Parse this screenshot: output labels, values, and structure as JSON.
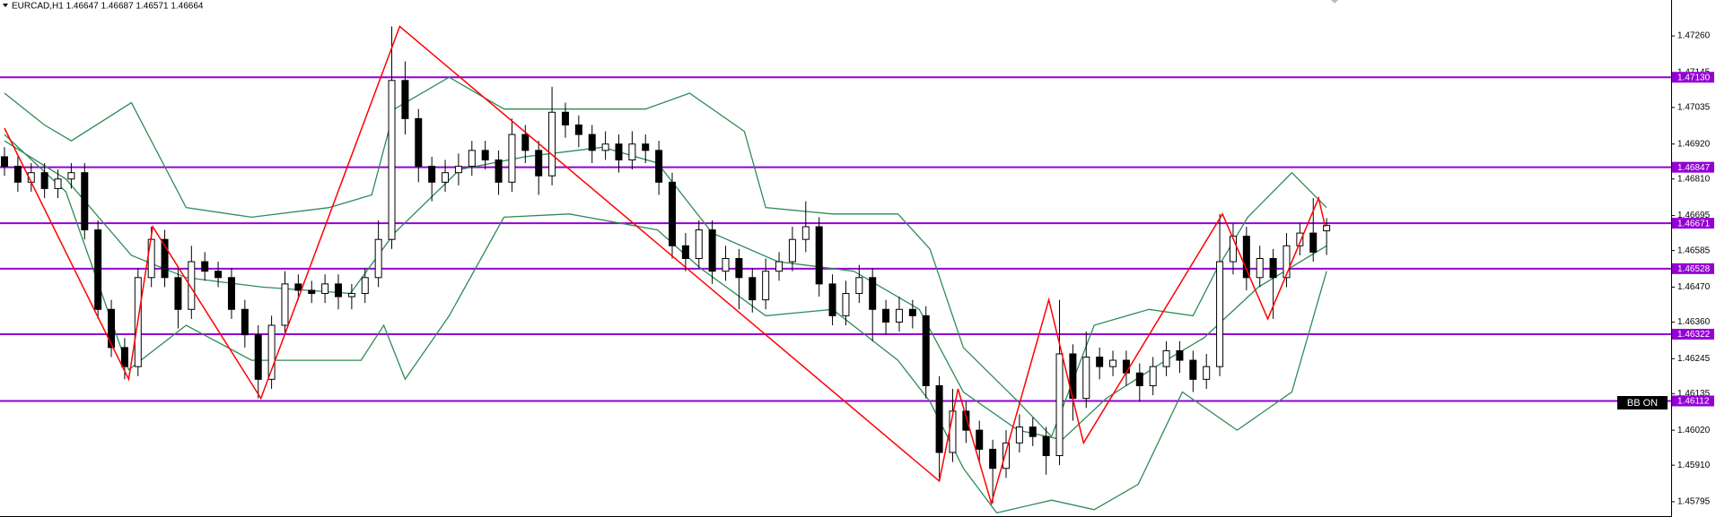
{
  "chart_data": {
    "type": "candlestick",
    "title": "EURCAD,H1  1.46647 1.46687 1.46571 1.46664",
    "ylim": [
      1.45747,
      1.47373
    ],
    "yticks": [
      {
        "value": 1.4726,
        "label": "1.47260"
      },
      1.47145,
      1.47035,
      {
        "value": 1.4692,
        "label": "1.46920"
      },
      {
        "value": 1.4681,
        "label": "1.46810"
      },
      1.46695,
      1.46585,
      {
        "value": 1.4647,
        "label": "1.46470"
      },
      {
        "value": 1.4636,
        "label": "1.46360"
      },
      1.46245,
      1.46135,
      {
        "value": 1.4602,
        "label": "1.46020"
      },
      {
        "value": 1.4591,
        "label": "1.45910"
      },
      1.45795
    ],
    "up_color": "#ffffff",
    "down_color": "#000000",
    "open": [
      1.4688,
      1.4685,
      1.468,
      1.4683,
      1.4678,
      1.4681,
      1.4683,
      1.4665,
      1.464,
      1.4628,
      1.4622,
      1.465,
      1.4662,
      1.465,
      1.464,
      1.4655,
      1.4652,
      1.465,
      1.464,
      1.4632,
      1.4618,
      1.4635,
      1.4648,
      1.4646,
      1.4645,
      1.4648,
      1.4644,
      1.4645,
      1.465,
      1.4662,
      1.4712,
      1.47,
      1.4685,
      1.468,
      1.4683,
      1.4685,
      1.469,
      1.4687,
      1.468,
      1.4695,
      1.469,
      1.4682,
      1.4702,
      1.4698,
      1.4695,
      1.469,
      1.4692,
      1.4687,
      1.4692,
      1.469,
      1.468,
      1.466,
      1.4656,
      1.4665,
      1.4652,
      1.4656,
      1.465,
      1.4643,
      1.4652,
      1.4655,
      1.4662,
      1.4666,
      1.4648,
      1.4638,
      1.4645,
      1.465,
      1.464,
      1.4636,
      1.464,
      1.4638,
      1.4616,
      1.4595,
      1.4608,
      1.4602,
      1.4596,
      1.459,
      1.4598,
      1.4603,
      1.46,
      1.4594,
      1.4626,
      1.4612,
      1.4625,
      1.4622,
      1.4624,
      1.462,
      1.4616,
      1.4622,
      1.4627,
      1.4624,
      1.4618,
      1.4622,
      1.4655,
      1.4663,
      1.465,
      1.4656,
      1.465,
      1.466,
      1.4664,
      1.46647
    ],
    "high": [
      1.4691,
      1.4688,
      1.4686,
      1.4686,
      1.4684,
      1.4686,
      1.4686,
      1.4668,
      1.4643,
      1.4631,
      1.4653,
      1.4666,
      1.4665,
      1.4653,
      1.466,
      1.4658,
      1.4655,
      1.4653,
      1.4643,
      1.4635,
      1.4638,
      1.4652,
      1.4651,
      1.4649,
      1.4651,
      1.4651,
      1.4648,
      1.4653,
      1.4668,
      1.4729,
      1.4718,
      1.4703,
      1.4688,
      1.4687,
      1.4689,
      1.4693,
      1.4693,
      1.469,
      1.47,
      1.4698,
      1.4693,
      1.471,
      1.4705,
      1.4701,
      1.4698,
      1.4696,
      1.4695,
      1.4696,
      1.4695,
      1.4693,
      1.4683,
      1.4664,
      1.4668,
      1.4668,
      1.466,
      1.4659,
      1.4653,
      1.4656,
      1.4658,
      1.4666,
      1.4674,
      1.4669,
      1.4651,
      1.4649,
      1.4654,
      1.4653,
      1.4643,
      1.4644,
      1.4643,
      1.4641,
      1.4619,
      1.4615,
      1.4611,
      1.4605,
      1.4599,
      1.4602,
      1.4607,
      1.4606,
      1.4603,
      1.4643,
      1.4629,
      1.4633,
      1.4628,
      1.4627,
      1.4627,
      1.4623,
      1.4625,
      1.463,
      1.463,
      1.4627,
      1.4626,
      1.467,
      1.4667,
      1.4666,
      1.466,
      1.4659,
      1.4664,
      1.4667,
      1.4675,
      1.46687
    ],
    "low": [
      1.4682,
      1.4677,
      1.4677,
      1.4675,
      1.4675,
      1.4678,
      1.4662,
      1.4637,
      1.4625,
      1.4618,
      1.4619,
      1.4647,
      1.4647,
      1.4634,
      1.4637,
      1.4649,
      1.4647,
      1.4637,
      1.4628,
      1.4612,
      1.4615,
      1.4632,
      1.4643,
      1.4642,
      1.4642,
      1.464,
      1.464,
      1.4642,
      1.4647,
      1.4659,
      1.4695,
      1.468,
      1.4674,
      1.4677,
      1.4679,
      1.4682,
      1.4684,
      1.4676,
      1.4677,
      1.4686,
      1.4676,
      1.4679,
      1.4694,
      1.4691,
      1.4686,
      1.4687,
      1.4683,
      1.4684,
      1.4686,
      1.4676,
      1.4656,
      1.4652,
      1.4653,
      1.4648,
      1.4649,
      1.464,
      1.4639,
      1.464,
      1.4649,
      1.4652,
      1.4658,
      1.4644,
      1.4635,
      1.4635,
      1.4642,
      1.463,
      1.4632,
      1.4633,
      1.4634,
      1.4612,
      1.4586,
      1.4592,
      1.4598,
      1.4592,
      1.4579,
      1.4587,
      1.4595,
      1.4597,
      1.4588,
      1.4591,
      1.4605,
      1.4609,
      1.4618,
      1.4619,
      1.4616,
      1.4611,
      1.4613,
      1.4619,
      1.462,
      1.4614,
      1.4615,
      1.4619,
      1.4651,
      1.4646,
      1.4647,
      1.4637,
      1.4647,
      1.4657,
      1.4655,
      1.46571
    ],
    "close": [
      1.4685,
      1.468,
      1.4683,
      1.4678,
      1.4681,
      1.4683,
      1.4665,
      1.464,
      1.4628,
      1.4622,
      1.465,
      1.4662,
      1.465,
      1.464,
      1.4655,
      1.4652,
      1.465,
      1.464,
      1.4632,
      1.4618,
      1.4635,
      1.4648,
      1.4646,
      1.4645,
      1.4648,
      1.4644,
      1.4645,
      1.465,
      1.4662,
      1.4712,
      1.47,
      1.4685,
      1.468,
      1.4683,
      1.4685,
      1.469,
      1.4687,
      1.468,
      1.4695,
      1.469,
      1.4682,
      1.4702,
      1.4698,
      1.4695,
      1.469,
      1.4692,
      1.4687,
      1.4692,
      1.469,
      1.468,
      1.466,
      1.4656,
      1.4665,
      1.4652,
      1.4656,
      1.465,
      1.4643,
      1.4652,
      1.4655,
      1.4662,
      1.4666,
      1.4648,
      1.4638,
      1.4645,
      1.465,
      1.464,
      1.4636,
      1.464,
      1.4638,
      1.4616,
      1.4595,
      1.4608,
      1.4602,
      1.4596,
      1.459,
      1.4598,
      1.4603,
      1.46,
      1.4594,
      1.4626,
      1.4612,
      1.4625,
      1.4622,
      1.4624,
      1.462,
      1.4616,
      1.4622,
      1.4627,
      1.4624,
      1.4618,
      1.4622,
      1.4655,
      1.4663,
      1.465,
      1.4656,
      1.465,
      1.466,
      1.4664,
      1.4658,
      1.46664
    ],
    "bands": [
      {
        "color": "#2e8b57",
        "x": [
          0,
          3,
          5,
          9.5,
          13.6,
          18.5,
          24.3,
          27.5,
          29.2,
          33.3,
          37.4,
          42.3,
          48,
          51.3,
          55.4,
          57,
          62,
          66.9,
          69.3,
          71.8,
          75.9,
          78.4,
          81.6,
          85.7,
          89,
          90.7,
          93.1,
          96.4,
          99
        ],
        "values": [
          1.4708,
          1.4698,
          1.4693,
          1.4705,
          1.4672,
          1.4669,
          1.4672,
          1.4676,
          1.4703,
          1.4713,
          1.4703,
          1.4703,
          1.4703,
          1.4708,
          1.4696,
          1.4672,
          1.467,
          1.467,
          1.4659,
          1.4628,
          1.4611,
          1.46,
          1.4635,
          1.464,
          1.4638,
          1.4652,
          1.4669,
          1.4683,
          1.4672
        ]
      },
      {
        "color": "#2e8b57",
        "x": [
          0,
          4.6,
          9.5,
          13.6,
          19.3,
          25.9,
          29.2,
          34.1,
          39,
          44.8,
          48.9,
          53,
          57.9,
          63.6,
          68.5,
          71.8,
          75.9,
          79.2,
          82.5,
          86.6,
          89.8,
          93.9,
          99
        ],
        "values": [
          1.4693,
          1.4681,
          1.4657,
          1.465,
          1.4647,
          1.4645,
          1.4664,
          1.4684,
          1.4688,
          1.4691,
          1.4686,
          1.4664,
          1.4655,
          1.4652,
          1.464,
          1.4614,
          1.4602,
          1.4599,
          1.4612,
          1.4623,
          1.4631,
          1.4647,
          1.466
        ]
      },
      {
        "color": "#2e8b57",
        "x": [
          0,
          4.6,
          9.3,
          13.6,
          18.5,
          26.7,
          28.4,
          30,
          33.3,
          37.4,
          42.3,
          48.9,
          52.1,
          57,
          62,
          66.9,
          69.3,
          71.8,
          74.3,
          78.4,
          81.6,
          84.9,
          88.2,
          92.3,
          96.4,
          99
        ],
        "values": [
          1.4695,
          1.4677,
          1.4621,
          1.4635,
          1.4624,
          1.4624,
          1.4635,
          1.4618,
          1.4638,
          1.4669,
          1.467,
          1.4665,
          1.4653,
          1.4638,
          1.464,
          1.4624,
          1.4611,
          1.459,
          1.4576,
          1.458,
          1.4577,
          1.4585,
          1.4614,
          1.4602,
          1.4614,
          1.4652
        ]
      }
    ],
    "zigzag": {
      "color": "#ff0000",
      "x": [
        0,
        9.3,
        11.1,
        19.2,
        29.6,
        70,
        71.4,
        73.9,
        78.2,
        80.8,
        91.2,
        94.6,
        98.4,
        98.9
      ],
      "values": [
        1.4697,
        1.4618,
        1.4666,
        1.4612,
        1.4729,
        1.4586,
        1.4615,
        1.4579,
        1.4643,
        1.4598,
        1.467,
        1.4637,
        1.4675,
        1.4666
      ]
    },
    "levels": [
      {
        "value": 1.4713,
        "label": "1.47130"
      },
      {
        "value": 1.46847,
        "label": "1.46847"
      },
      {
        "value": 1.46671,
        "label": "1.46671"
      },
      {
        "value": 1.46528,
        "label": "1.46528"
      },
      {
        "value": 1.46322,
        "label": "1.46322"
      },
      {
        "value": 1.46112,
        "label": "1.46112"
      }
    ],
    "level_color": "#9400d3",
    "button": "BB ON"
  }
}
